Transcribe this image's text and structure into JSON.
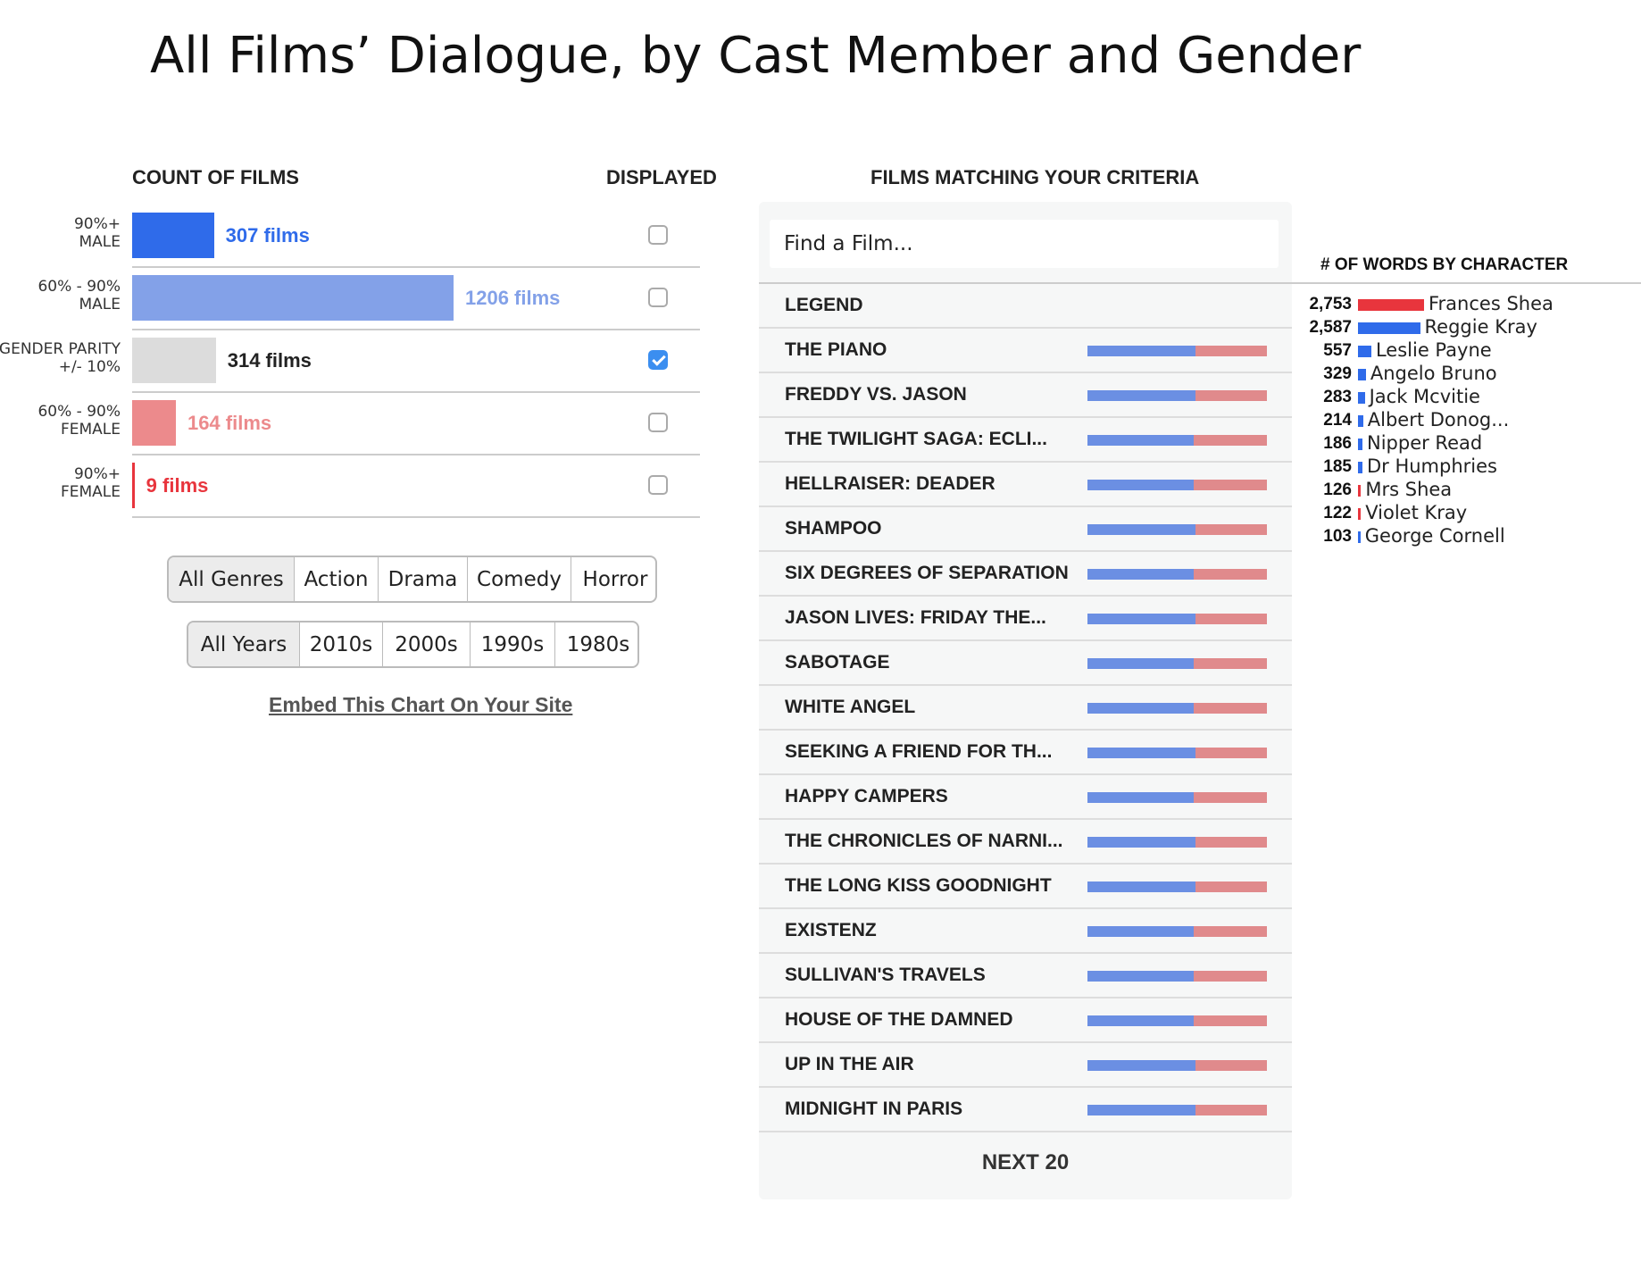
{
  "title": "All Films’ Dialogue, by Cast Member and Gender",
  "count_panel": {
    "header": "COUNT OF FILMS",
    "displayed_header": "DISPLAYED",
    "rows": [
      {
        "label": [
          "90%+",
          "MALE"
        ],
        "value": 307,
        "value_label": "307 films",
        "color": "#2f6bea",
        "label_color": "#2f6bea",
        "checked": false
      },
      {
        "label": [
          "60% - 90%",
          "MALE"
        ],
        "value": 1206,
        "value_label": "1206 films",
        "color": "#83a1e8",
        "label_color": "#83a1e8",
        "checked": false
      },
      {
        "label": [
          "GENDER PARITY",
          "+/- 10%"
        ],
        "value": 314,
        "value_label": "314 films",
        "color": "#dcdcdc",
        "label_color": "#222222",
        "checked": true
      },
      {
        "label": [
          "60% - 90%",
          "FEMALE"
        ],
        "value": 164,
        "value_label": "164 films",
        "color": "#ec8a8c",
        "label_color": "#ec8a8c",
        "checked": false
      },
      {
        "label": [
          "90%+",
          "FEMALE"
        ],
        "value": 9,
        "value_label": "9 films",
        "color": "#e8353d",
        "label_color": "#e8353d",
        "checked": false
      }
    ]
  },
  "genre_buttons": {
    "items": [
      "All Genres",
      "Action",
      "Drama",
      "Comedy",
      "Horror"
    ],
    "selected": 0
  },
  "year_buttons": {
    "items": [
      "All Years",
      "2010s",
      "2000s",
      "1990s",
      "1980s"
    ],
    "selected": 0
  },
  "embed_link": "Embed This Chart On Your Site",
  "films_panel": {
    "header": "FILMS MATCHING YOUR CRITERIA",
    "search_placeholder": "Find a Film...",
    "legend": "LEGEND",
    "male_color": "#6b8fe3",
    "female_color": "#e08a8c",
    "films": [
      {
        "name": "THE PIANO",
        "male_share": 60
      },
      {
        "name": "FREDDY VS. JASON",
        "male_share": 60
      },
      {
        "name": "THE TWILIGHT SAGA: ECLI...",
        "male_share": 59
      },
      {
        "name": "HELLRAISER: DEADER",
        "male_share": 59
      },
      {
        "name": "SHAMPOO",
        "male_share": 60
      },
      {
        "name": "SIX DEGREES OF SEPARATION",
        "male_share": 59
      },
      {
        "name": "JASON LIVES: FRIDAY THE...",
        "male_share": 60
      },
      {
        "name": "SABOTAGE",
        "male_share": 59
      },
      {
        "name": "WHITE ANGEL",
        "male_share": 59
      },
      {
        "name": "SEEKING A FRIEND FOR TH...",
        "male_share": 60
      },
      {
        "name": "HAPPY CAMPERS",
        "male_share": 59
      },
      {
        "name": "THE CHRONICLES OF NARNI...",
        "male_share": 60
      },
      {
        "name": "THE LONG KISS GOODNIGHT",
        "male_share": 60
      },
      {
        "name": "EXISTENZ",
        "male_share": 59
      },
      {
        "name": "SULLIVAN'S TRAVELS",
        "male_share": 59
      },
      {
        "name": "HOUSE OF THE DAMNED",
        "male_share": 59
      },
      {
        "name": "UP IN THE AIR",
        "male_share": 60
      },
      {
        "name": "MIDNIGHT IN PARIS",
        "male_share": 60
      }
    ],
    "next_button": "NEXT 20"
  },
  "character_panel": {
    "header": "# OF WORDS BY CHARACTER",
    "characters": [
      {
        "name": "Frances Shea",
        "words": 2753,
        "words_label": "2,753",
        "color": "#e8353d"
      },
      {
        "name": "Reggie Kray",
        "words": 2587,
        "words_label": "2,587",
        "color": "#2f6bea"
      },
      {
        "name": "Leslie Payne",
        "words": 557,
        "color": "#2f6bea"
      },
      {
        "name": "Angelo Bruno",
        "words": 329,
        "color": "#2f6bea"
      },
      {
        "name": "Jack Mcvitie",
        "words": 283,
        "color": "#2f6bea"
      },
      {
        "name": "Albert Donog...",
        "words": 214,
        "color": "#2f6bea"
      },
      {
        "name": "Nipper Read",
        "words": 186,
        "color": "#2f6bea"
      },
      {
        "name": "Dr Humphries",
        "words": 185,
        "color": "#2f6bea"
      },
      {
        "name": "Mrs Shea",
        "words": 126,
        "color": "#e8353d"
      },
      {
        "name": "Violet Kray",
        "words": 122,
        "color": "#e8353d"
      },
      {
        "name": "George Cornell",
        "words": 103,
        "color": "#2f6bea"
      }
    ]
  }
}
